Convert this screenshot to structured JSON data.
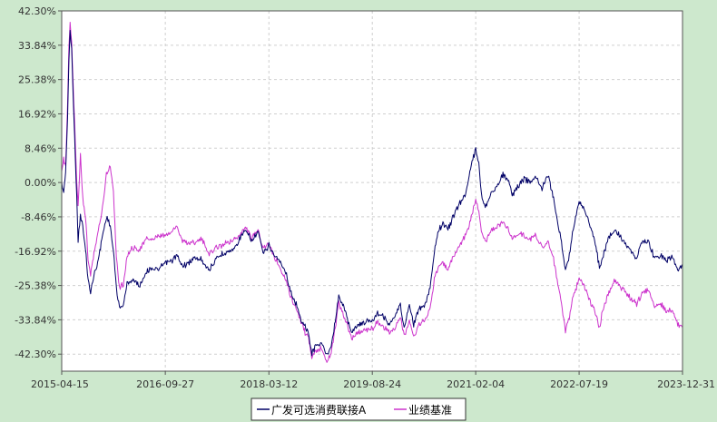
{
  "chart_data": {
    "type": "line",
    "x_ticks": [
      "2015-04-15",
      "2016-09-27",
      "2018-03-12",
      "2019-08-24",
      "2021-02-04",
      "2022-07-19",
      "2023-12-31"
    ],
    "y_ticks": [
      "42.30%",
      "33.84%",
      "25.38%",
      "16.92%",
      "8.46%",
      "0.00%",
      "-8.46%",
      "-16.92%",
      "-25.38%",
      "-33.84%",
      "-42.30%"
    ],
    "ylim": [
      -46.5,
      42.3
    ],
    "x_range": [
      "2015-04-15",
      "2023-12-31"
    ],
    "grid": true,
    "legend_position": "bottom-center",
    "series": [
      {
        "name": "广发可选消费联接A",
        "color": "#000066",
        "points": [
          [
            "2015-04-15",
            0.0
          ],
          [
            "2015-04-25",
            -2.5
          ],
          [
            "2015-05-05",
            3.0
          ],
          [
            "2015-05-15",
            16.0
          ],
          [
            "2015-05-22",
            30.0
          ],
          [
            "2015-05-28",
            37.5
          ],
          [
            "2015-06-05",
            33.0
          ],
          [
            "2015-06-12",
            22.0
          ],
          [
            "2015-06-20",
            12.0
          ],
          [
            "2015-07-01",
            -4.0
          ],
          [
            "2015-07-08",
            -14.0
          ],
          [
            "2015-07-20",
            -8.0
          ],
          [
            "2015-08-01",
            -11.0
          ],
          [
            "2015-08-18",
            -18.0
          ],
          [
            "2015-08-28",
            -24.0
          ],
          [
            "2015-09-10",
            -27.0
          ],
          [
            "2015-10-01",
            -22.0
          ],
          [
            "2015-10-20",
            -19.0
          ],
          [
            "2015-11-10",
            -13.0
          ],
          [
            "2015-11-30",
            -8.5
          ],
          [
            "2015-12-20",
            -10.5
          ],
          [
            "2016-01-05",
            -17.0
          ],
          [
            "2016-01-20",
            -26.0
          ],
          [
            "2016-02-05",
            -31.0
          ],
          [
            "2016-02-25",
            -30.0
          ],
          [
            "2016-03-15",
            -25.0
          ],
          [
            "2016-04-15",
            -24.0
          ],
          [
            "2016-05-20",
            -25.5
          ],
          [
            "2016-06-20",
            -22.0
          ],
          [
            "2016-07-20",
            -21.0
          ],
          [
            "2016-08-20",
            -21.5
          ],
          [
            "2016-09-27",
            -20.0
          ],
          [
            "2016-10-25",
            -19.5
          ],
          [
            "2016-11-25",
            -18.0
          ],
          [
            "2016-12-20",
            -20.5
          ],
          [
            "2017-01-20",
            -20.0
          ],
          [
            "2017-03-01",
            -18.5
          ],
          [
            "2017-04-01",
            -19.0
          ],
          [
            "2017-05-10",
            -21.5
          ],
          [
            "2017-06-15",
            -19.0
          ],
          [
            "2017-07-15",
            -17.5
          ],
          [
            "2017-08-20",
            -17.0
          ],
          [
            "2017-09-20",
            -16.0
          ],
          [
            "2017-10-20",
            -13.0
          ],
          [
            "2017-11-15",
            -12.0
          ],
          [
            "2017-12-15",
            -14.5
          ],
          [
            "2018-01-15",
            -12.0
          ],
          [
            "2018-02-10",
            -17.5
          ],
          [
            "2018-03-12",
            -15.5
          ],
          [
            "2018-04-10",
            -18.0
          ],
          [
            "2018-05-10",
            -19.5
          ],
          [
            "2018-06-10",
            -22.5
          ],
          [
            "2018-06-30",
            -27.0
          ],
          [
            "2018-07-30",
            -30.0
          ],
          [
            "2018-08-20",
            -33.5
          ],
          [
            "2018-09-10",
            -35.0
          ],
          [
            "2018-10-01",
            -37.5
          ],
          [
            "2018-10-18",
            -42.0
          ],
          [
            "2018-11-10",
            -40.0
          ],
          [
            "2018-12-05",
            -39.5
          ],
          [
            "2019-01-03",
            -42.5
          ],
          [
            "2019-01-25",
            -40.0
          ],
          [
            "2019-02-15",
            -34.0
          ],
          [
            "2019-03-05",
            -28.0
          ],
          [
            "2019-03-25",
            -30.0
          ],
          [
            "2019-04-15",
            -33.0
          ],
          [
            "2019-05-10",
            -37.0
          ],
          [
            "2019-06-10",
            -35.0
          ],
          [
            "2019-07-10",
            -34.5
          ],
          [
            "2019-08-24",
            -34.0
          ],
          [
            "2019-09-20",
            -32.0
          ],
          [
            "2019-10-20",
            -33.0
          ],
          [
            "2019-11-20",
            -35.0
          ],
          [
            "2019-12-20",
            -33.0
          ],
          [
            "2020-01-15",
            -30.0
          ],
          [
            "2020-02-03",
            -36.0
          ],
          [
            "2020-03-01",
            -30.0
          ],
          [
            "2020-03-23",
            -35.0
          ],
          [
            "2020-04-20",
            -31.0
          ],
          [
            "2020-05-20",
            -30.5
          ],
          [
            "2020-06-15",
            -26.0
          ],
          [
            "2020-07-07",
            -17.0
          ],
          [
            "2020-07-25",
            -12.0
          ],
          [
            "2020-08-20",
            -10.0
          ],
          [
            "2020-09-15",
            -11.5
          ],
          [
            "2020-10-15",
            -8.0
          ],
          [
            "2020-11-15",
            -5.0
          ],
          [
            "2020-12-15",
            -3.0
          ],
          [
            "2021-01-05",
            3.0
          ],
          [
            "2021-01-20",
            6.0
          ],
          [
            "2021-02-04",
            8.0
          ],
          [
            "2021-02-20",
            5.0
          ],
          [
            "2021-03-05",
            -3.0
          ],
          [
            "2021-03-25",
            -6.0
          ],
          [
            "2021-04-20",
            -3.0
          ],
          [
            "2021-05-20",
            -1.5
          ],
          [
            "2021-06-20",
            2.0
          ],
          [
            "2021-07-20",
            0.5
          ],
          [
            "2021-08-10",
            -3.0
          ],
          [
            "2021-09-10",
            -1.0
          ],
          [
            "2021-10-10",
            1.0
          ],
          [
            "2021-11-10",
            0.0
          ],
          [
            "2021-12-10",
            1.5
          ],
          [
            "2022-01-10",
            -1.5
          ],
          [
            "2022-02-10",
            2.0
          ],
          [
            "2022-03-10",
            -4.0
          ],
          [
            "2022-04-01",
            -10.0
          ],
          [
            "2022-04-27",
            -17.0
          ],
          [
            "2022-05-10",
            -22.0
          ],
          [
            "2022-05-30",
            -18.0
          ],
          [
            "2022-06-15",
            -12.0
          ],
          [
            "2022-07-05",
            -8.0
          ],
          [
            "2022-07-19",
            -4.5
          ],
          [
            "2022-08-10",
            -6.0
          ],
          [
            "2022-09-10",
            -10.0
          ],
          [
            "2022-10-10",
            -15.0
          ],
          [
            "2022-10-31",
            -21.0
          ],
          [
            "2022-11-20",
            -18.0
          ],
          [
            "2022-12-15",
            -14.0
          ],
          [
            "2023-01-15",
            -11.5
          ],
          [
            "2023-02-10",
            -13.0
          ],
          [
            "2023-03-10",
            -15.0
          ],
          [
            "2023-04-10",
            -17.0
          ],
          [
            "2023-05-10",
            -19.0
          ],
          [
            "2023-06-10",
            -14.0
          ],
          [
            "2023-07-10",
            -15.0
          ],
          [
            "2023-08-10",
            -18.5
          ],
          [
            "2023-09-10",
            -18.0
          ],
          [
            "2023-10-10",
            -19.0
          ],
          [
            "2023-11-10",
            -18.5
          ],
          [
            "2023-12-10",
            -21.5
          ],
          [
            "2023-12-31",
            -20.5
          ]
        ]
      },
      {
        "name": "业绩基准",
        "color": "#cc33cc",
        "points": [
          [
            "2015-04-15",
            2.0
          ],
          [
            "2015-04-25",
            6.0
          ],
          [
            "2015-05-05",
            4.0
          ],
          [
            "2015-05-15",
            19.0
          ],
          [
            "2015-05-22",
            34.0
          ],
          [
            "2015-05-28",
            39.0
          ],
          [
            "2015-06-05",
            35.0
          ],
          [
            "2015-06-12",
            25.0
          ],
          [
            "2015-06-20",
            15.0
          ],
          [
            "2015-07-01",
            0.0
          ],
          [
            "2015-07-08",
            -6.0
          ],
          [
            "2015-07-20",
            7.0
          ],
          [
            "2015-08-01",
            -4.0
          ],
          [
            "2015-08-18",
            -10.0
          ],
          [
            "2015-08-28",
            -19.0
          ],
          [
            "2015-09-10",
            -23.0
          ],
          [
            "2015-10-01",
            -16.0
          ],
          [
            "2015-10-20",
            -12.0
          ],
          [
            "2015-11-10",
            -6.0
          ],
          [
            "2015-11-30",
            2.0
          ],
          [
            "2015-12-20",
            4.0
          ],
          [
            "2016-01-05",
            -2.0
          ],
          [
            "2016-01-20",
            -18.0
          ],
          [
            "2016-02-05",
            -26.0
          ],
          [
            "2016-02-25",
            -25.0
          ],
          [
            "2016-03-15",
            -18.0
          ],
          [
            "2016-04-15",
            -16.0
          ],
          [
            "2016-05-20",
            -16.5
          ],
          [
            "2016-06-20",
            -14.0
          ],
          [
            "2016-07-20",
            -14.0
          ],
          [
            "2016-08-20",
            -13.5
          ],
          [
            "2016-09-27",
            -13.0
          ],
          [
            "2016-10-25",
            -12.5
          ],
          [
            "2016-11-25",
            -10.5
          ],
          [
            "2016-12-20",
            -14.0
          ],
          [
            "2017-01-20",
            -15.0
          ],
          [
            "2017-03-01",
            -14.5
          ],
          [
            "2017-04-01",
            -14.0
          ],
          [
            "2017-05-10",
            -17.5
          ],
          [
            "2017-06-15",
            -16.0
          ],
          [
            "2017-07-15",
            -15.5
          ],
          [
            "2017-08-20",
            -14.5
          ],
          [
            "2017-09-20",
            -14.0
          ],
          [
            "2017-10-20",
            -12.5
          ],
          [
            "2017-11-15",
            -11.0
          ],
          [
            "2017-12-15",
            -14.0
          ],
          [
            "2018-01-15",
            -11.5
          ],
          [
            "2018-02-10",
            -16.0
          ],
          [
            "2018-03-12",
            -15.0
          ],
          [
            "2018-04-10",
            -18.5
          ],
          [
            "2018-05-10",
            -21.0
          ],
          [
            "2018-06-10",
            -24.0
          ],
          [
            "2018-06-30",
            -28.0
          ],
          [
            "2018-07-30",
            -31.0
          ],
          [
            "2018-08-20",
            -34.0
          ],
          [
            "2018-09-10",
            -36.5
          ],
          [
            "2018-10-01",
            -38.5
          ],
          [
            "2018-10-18",
            -43.0
          ],
          [
            "2018-11-10",
            -41.5
          ],
          [
            "2018-12-05",
            -41.0
          ],
          [
            "2019-01-03",
            -44.0
          ],
          [
            "2019-01-25",
            -42.0
          ],
          [
            "2019-02-15",
            -36.0
          ],
          [
            "2019-03-05",
            -30.0
          ],
          [
            "2019-03-25",
            -32.0
          ],
          [
            "2019-04-15",
            -35.0
          ],
          [
            "2019-05-10",
            -38.5
          ],
          [
            "2019-06-10",
            -37.0
          ],
          [
            "2019-07-10",
            -36.5
          ],
          [
            "2019-08-24",
            -36.0
          ],
          [
            "2019-09-20",
            -34.5
          ],
          [
            "2019-10-20",
            -35.5
          ],
          [
            "2019-11-20",
            -37.0
          ],
          [
            "2019-12-20",
            -36.0
          ],
          [
            "2020-01-15",
            -33.0
          ],
          [
            "2020-02-03",
            -38.0
          ],
          [
            "2020-03-01",
            -34.0
          ],
          [
            "2020-03-23",
            -38.0
          ],
          [
            "2020-04-20",
            -35.0
          ],
          [
            "2020-05-20",
            -34.0
          ],
          [
            "2020-06-15",
            -31.0
          ],
          [
            "2020-07-07",
            -24.0
          ],
          [
            "2020-07-25",
            -21.0
          ],
          [
            "2020-08-20",
            -20.0
          ],
          [
            "2020-09-15",
            -21.5
          ],
          [
            "2020-10-15",
            -18.0
          ],
          [
            "2020-11-15",
            -15.5
          ],
          [
            "2020-12-15",
            -13.0
          ],
          [
            "2021-01-05",
            -10.0
          ],
          [
            "2021-01-20",
            -7.0
          ],
          [
            "2021-02-04",
            -4.5
          ],
          [
            "2021-02-20",
            -7.0
          ],
          [
            "2021-03-05",
            -12.0
          ],
          [
            "2021-03-25",
            -14.5
          ],
          [
            "2021-04-20",
            -12.0
          ],
          [
            "2021-05-20",
            -11.0
          ],
          [
            "2021-06-20",
            -10.0
          ],
          [
            "2021-07-20",
            -11.0
          ],
          [
            "2021-08-10",
            -14.0
          ],
          [
            "2021-09-10",
            -12.5
          ],
          [
            "2021-10-10",
            -13.0
          ],
          [
            "2021-11-10",
            -14.0
          ],
          [
            "2021-12-10",
            -13.0
          ],
          [
            "2022-01-10",
            -16.0
          ],
          [
            "2022-02-10",
            -14.5
          ],
          [
            "2022-03-10",
            -19.0
          ],
          [
            "2022-04-01",
            -25.0
          ],
          [
            "2022-04-27",
            -32.0
          ],
          [
            "2022-05-10",
            -37.0
          ],
          [
            "2022-05-30",
            -33.0
          ],
          [
            "2022-06-15",
            -29.0
          ],
          [
            "2022-07-05",
            -26.0
          ],
          [
            "2022-07-19",
            -23.5
          ],
          [
            "2022-08-10",
            -25.0
          ],
          [
            "2022-09-10",
            -29.0
          ],
          [
            "2022-10-10",
            -32.0
          ],
          [
            "2022-10-31",
            -35.5
          ],
          [
            "2022-11-20",
            -31.0
          ],
          [
            "2022-12-15",
            -27.5
          ],
          [
            "2023-01-15",
            -24.0
          ],
          [
            "2023-02-10",
            -25.5
          ],
          [
            "2023-03-10",
            -27.0
          ],
          [
            "2023-04-10",
            -28.5
          ],
          [
            "2023-05-10",
            -30.0
          ],
          [
            "2023-06-10",
            -27.0
          ],
          [
            "2023-07-10",
            -26.5
          ],
          [
            "2023-08-10",
            -30.5
          ],
          [
            "2023-09-10",
            -30.0
          ],
          [
            "2023-10-10",
            -31.5
          ],
          [
            "2023-11-10",
            -32.0
          ],
          [
            "2023-12-10",
            -35.0
          ],
          [
            "2023-12-31",
            -35.5
          ]
        ]
      }
    ]
  }
}
